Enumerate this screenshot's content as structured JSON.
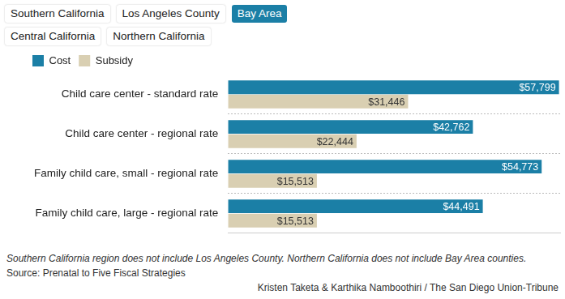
{
  "header": {
    "tabs": [
      "Southern California",
      "Los Angeles County",
      "Bay Area",
      "Central California",
      "Northern California"
    ],
    "selected": "Bay Area"
  },
  "chart_data": {
    "type": "bar",
    "orientation": "horizontal",
    "categories": [
      "Child care center - standard rate",
      "Child care center - regional rate",
      "Family child care, small - regional rate",
      "Family child care, large - regional rate"
    ],
    "series": [
      {
        "name": "Cost",
        "color": "#1b7fa6",
        "values": [
          57799,
          42762,
          54773,
          44491
        ],
        "value_labels": [
          "$57,799",
          "$42,762",
          "$54,773",
          "$44,491"
        ]
      },
      {
        "name": "Subsidy",
        "color": "#d9cfb2",
        "values": [
          31446,
          22444,
          15513,
          15513
        ],
        "value_labels": [
          "$31,446",
          "$22,444",
          "$15,513",
          "$15,513"
        ]
      }
    ],
    "xlim": [
      0,
      58000
    ],
    "data_labels": true,
    "tick_labels": "y",
    "grid": true,
    "legend": "top-left"
  },
  "footer": {
    "note": "Southern California region does not include Los Angeles County. Northern California does not include Bay Area counties.",
    "source": "Source: Prenatal to Five Fiscal Strategies",
    "credit": "Kristen Taketa & Karthika Namboothiri / The San Diego Union-Tribune"
  }
}
